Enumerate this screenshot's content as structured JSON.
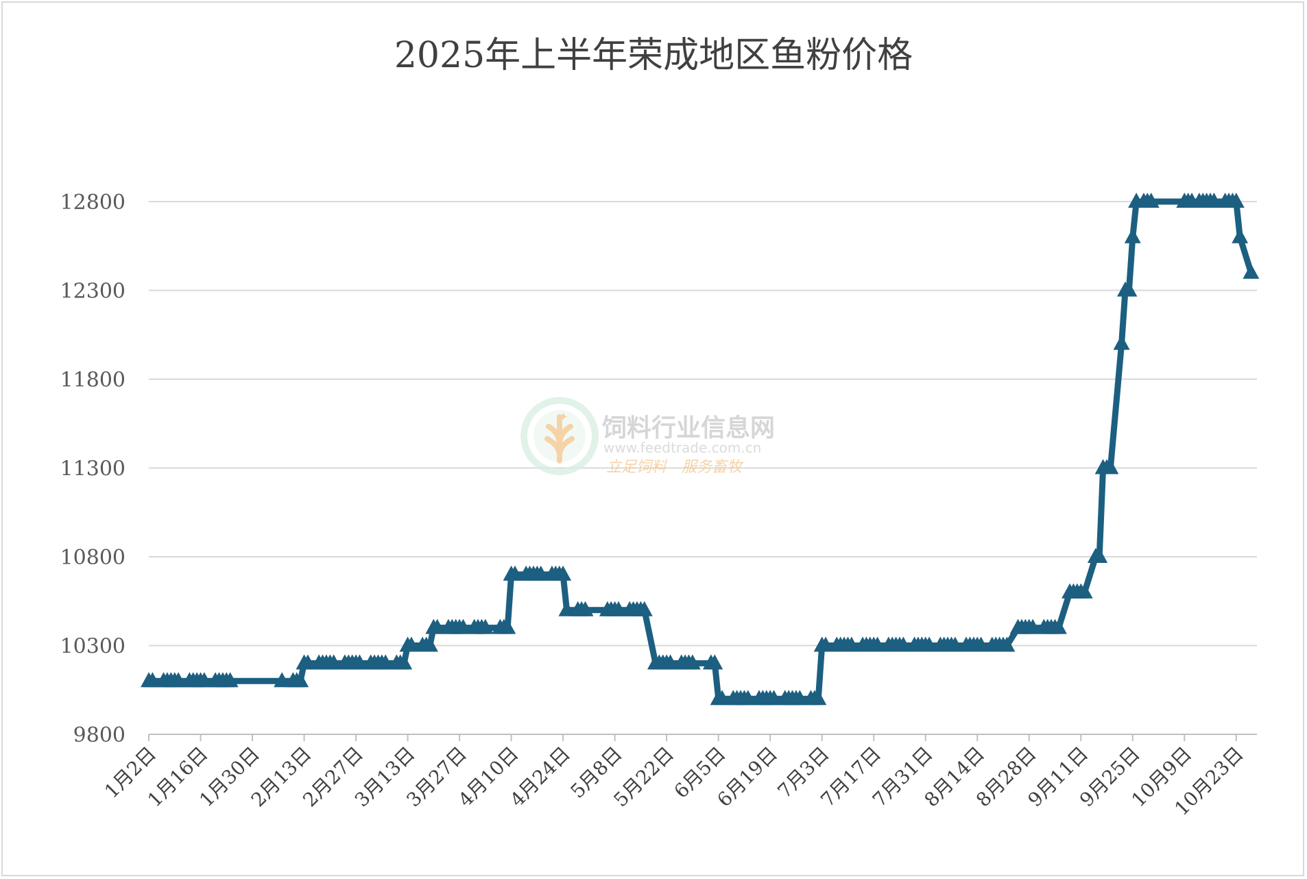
{
  "chart_data": {
    "type": "line",
    "title": "2025年上半年荣成地区鱼粉价格",
    "xlabel": "",
    "ylabel": "",
    "ylim": [
      9800,
      12800
    ],
    "yticks": [
      9800,
      10300,
      10800,
      11300,
      11800,
      12300,
      12800
    ],
    "grid": true,
    "legend": "none",
    "line_color": "#1c5f80",
    "marker": "triangle",
    "xtick_labels": [
      "1月2日",
      "1月16日",
      "1月30日",
      "2月13日",
      "2月27日",
      "3月13日",
      "3月27日",
      "4月10日",
      "4月24日",
      "5月8日",
      "5月22日",
      "6月5日",
      "6月19日",
      "7月3日",
      "7月17日",
      "7月31日",
      "8月14日",
      "8月28日",
      "9月11日",
      "9月25日",
      "10月9日",
      "10月23日"
    ],
    "x_start": "2025-01-02",
    "series": [
      {
        "points": [
          [
            "1月2日",
            10100
          ],
          [
            "1月3日",
            10100
          ],
          [
            "1月6日",
            10100
          ],
          [
            "1月7日",
            10100
          ],
          [
            "1月8日",
            10100
          ],
          [
            "1月9日",
            10100
          ],
          [
            "1月10日",
            10100
          ],
          [
            "1月13日",
            10100
          ],
          [
            "1月14日",
            10100
          ],
          [
            "1月15日",
            10100
          ],
          [
            "1月16日",
            10100
          ],
          [
            "1月17日",
            10100
          ],
          [
            "1月20日",
            10100
          ],
          [
            "1月21日",
            10100
          ],
          [
            "1月22日",
            10100
          ],
          [
            "1月23日",
            10100
          ],
          [
            "1月24日",
            10100
          ],
          [
            "2月7日",
            10100
          ],
          [
            "2月10日",
            10100
          ],
          [
            "2月11日",
            10100
          ],
          [
            "2月12日",
            10100
          ],
          [
            "2月13日",
            10200
          ],
          [
            "2月14日",
            10200
          ],
          [
            "2月17日",
            10200
          ],
          [
            "2月18日",
            10200
          ],
          [
            "2月19日",
            10200
          ],
          [
            "2月20日",
            10200
          ],
          [
            "2月21日",
            10200
          ],
          [
            "2月24日",
            10200
          ],
          [
            "2月25日",
            10200
          ],
          [
            "2月26日",
            10200
          ],
          [
            "2月27日",
            10200
          ],
          [
            "2月28日",
            10200
          ],
          [
            "3月3日",
            10200
          ],
          [
            "3月4日",
            10200
          ],
          [
            "3月5日",
            10200
          ],
          [
            "3月6日",
            10200
          ],
          [
            "3月7日",
            10200
          ],
          [
            "3月10日",
            10200
          ],
          [
            "3月11日",
            10200
          ],
          [
            "3月12日",
            10200
          ],
          [
            "3月13日",
            10300
          ],
          [
            "3月14日",
            10300
          ],
          [
            "3月17日",
            10300
          ],
          [
            "3月18日",
            10300
          ],
          [
            "3月19日",
            10300
          ],
          [
            "3月20日",
            10400
          ],
          [
            "3月21日",
            10400
          ],
          [
            "3月24日",
            10400
          ],
          [
            "3月25日",
            10400
          ],
          [
            "3月26日",
            10400
          ],
          [
            "3月27日",
            10400
          ],
          [
            "3月28日",
            10400
          ],
          [
            "3月31日",
            10400
          ],
          [
            "4月1日",
            10400
          ],
          [
            "4月2日",
            10400
          ],
          [
            "4月3日",
            10400
          ],
          [
            "4月7日",
            10400
          ],
          [
            "4月8日",
            10400
          ],
          [
            "4月9日",
            10400
          ],
          [
            "4月10日",
            10700
          ],
          [
            "4月11日",
            10700
          ],
          [
            "4月14日",
            10700
          ],
          [
            "4月15日",
            10700
          ],
          [
            "4月16日",
            10700
          ],
          [
            "4月17日",
            10700
          ],
          [
            "4月18日",
            10700
          ],
          [
            "4月21日",
            10700
          ],
          [
            "4月22日",
            10700
          ],
          [
            "4月23日",
            10700
          ],
          [
            "4月24日",
            10700
          ],
          [
            "4月25日",
            10500
          ],
          [
            "4月28日",
            10500
          ],
          [
            "4月29日",
            10500
          ],
          [
            "4月30日",
            10500
          ],
          [
            "5月6日",
            10500
          ],
          [
            "5月7日",
            10500
          ],
          [
            "5月8日",
            10500
          ],
          [
            "5月9日",
            10500
          ],
          [
            "5月12日",
            10500
          ],
          [
            "5月13日",
            10500
          ],
          [
            "5月14日",
            10500
          ],
          [
            "5月15日",
            10500
          ],
          [
            "5月16日",
            10500
          ],
          [
            "5月19日",
            10200
          ],
          [
            "5月20日",
            10200
          ],
          [
            "5月21日",
            10200
          ],
          [
            "5月22日",
            10200
          ],
          [
            "5月23日",
            10200
          ],
          [
            "5月26日",
            10200
          ],
          [
            "5月27日",
            10200
          ],
          [
            "5月28日",
            10200
          ],
          [
            "5月29日",
            10200
          ],
          [
            "6月3日",
            10200
          ],
          [
            "6月4日",
            10200
          ],
          [
            "6月5日",
            10000
          ],
          [
            "6月6日",
            10000
          ],
          [
            "6月9日",
            10000
          ],
          [
            "6月10日",
            10000
          ],
          [
            "6月11日",
            10000
          ],
          [
            "6月12日",
            10000
          ],
          [
            "6月13日",
            10000
          ],
          [
            "6月16日",
            10000
          ],
          [
            "6月17日",
            10000
          ],
          [
            "6月18日",
            10000
          ],
          [
            "6月19日",
            10000
          ],
          [
            "6月20日",
            10000
          ],
          [
            "6月23日",
            10000
          ],
          [
            "6月24日",
            10000
          ],
          [
            "6月25日",
            10000
          ],
          [
            "6月26日",
            10000
          ],
          [
            "6月27日",
            10000
          ],
          [
            "6月30日",
            10000
          ],
          [
            "7月1日",
            10000
          ],
          [
            "7月2日",
            10000
          ],
          [
            "7月3日",
            10300
          ],
          [
            "7月4日",
            10300
          ],
          [
            "7月7日",
            10300
          ],
          [
            "7月8日",
            10300
          ],
          [
            "7月9日",
            10300
          ],
          [
            "7月10日",
            10300
          ],
          [
            "7月11日",
            10300
          ],
          [
            "7月14日",
            10300
          ],
          [
            "7月15日",
            10300
          ],
          [
            "7月16日",
            10300
          ],
          [
            "7月17日",
            10300
          ],
          [
            "7月18日",
            10300
          ],
          [
            "7月21日",
            10300
          ],
          [
            "7月22日",
            10300
          ],
          [
            "7月23日",
            10300
          ],
          [
            "7月24日",
            10300
          ],
          [
            "7月25日",
            10300
          ],
          [
            "7月28日",
            10300
          ],
          [
            "7月29日",
            10300
          ],
          [
            "7月30日",
            10300
          ],
          [
            "7月31日",
            10300
          ],
          [
            "8月1日",
            10300
          ],
          [
            "8月4日",
            10300
          ],
          [
            "8月5日",
            10300
          ],
          [
            "8月6日",
            10300
          ],
          [
            "8月7日",
            10300
          ],
          [
            "8月8日",
            10300
          ],
          [
            "8月11日",
            10300
          ],
          [
            "8月12日",
            10300
          ],
          [
            "8月13日",
            10300
          ],
          [
            "8月14日",
            10300
          ],
          [
            "8月15日",
            10300
          ],
          [
            "8月18日",
            10300
          ],
          [
            "8月19日",
            10300
          ],
          [
            "8月20日",
            10300
          ],
          [
            "8月21日",
            10300
          ],
          [
            "8月22日",
            10300
          ],
          [
            "8月25日",
            10400
          ],
          [
            "8月26日",
            10400
          ],
          [
            "8月27日",
            10400
          ],
          [
            "8月28日",
            10400
          ],
          [
            "8月29日",
            10400
          ],
          [
            "9月1日",
            10400
          ],
          [
            "9月2日",
            10400
          ],
          [
            "9月3日",
            10400
          ],
          [
            "9月4日",
            10400
          ],
          [
            "9月5日",
            10400
          ],
          [
            "9月8日",
            10600
          ],
          [
            "9月9日",
            10600
          ],
          [
            "9月10日",
            10600
          ],
          [
            "9月11日",
            10600
          ],
          [
            "9月12日",
            10600
          ],
          [
            "9月15日",
            10800
          ],
          [
            "9月16日",
            10800
          ],
          [
            "9月17日",
            11300
          ],
          [
            "9月18日",
            11300
          ],
          [
            "9月19日",
            11300
          ],
          [
            "9月22日",
            12000
          ],
          [
            "9月23日",
            12300
          ],
          [
            "9月24日",
            12300
          ],
          [
            "9月25日",
            12600
          ],
          [
            "9月26日",
            12800
          ],
          [
            "9月28日",
            12800
          ],
          [
            "9月29日",
            12800
          ],
          [
            "9月30日",
            12800
          ],
          [
            "10月9日",
            12800
          ],
          [
            "10月10日",
            12800
          ],
          [
            "10月11日",
            12800
          ],
          [
            "10月13日",
            12800
          ],
          [
            "10月14日",
            12800
          ],
          [
            "10月15日",
            12800
          ],
          [
            "10月16日",
            12800
          ],
          [
            "10月17日",
            12800
          ],
          [
            "10月20日",
            12800
          ],
          [
            "10月21日",
            12800
          ],
          [
            "10月22日",
            12800
          ],
          [
            "10月23日",
            12800
          ],
          [
            "10月24日",
            12600
          ],
          [
            "10月27日",
            12400
          ]
        ]
      }
    ]
  },
  "watermark": {
    "name": "饲料行业信息网",
    "url": "www.feedtrade.com.cn",
    "slogan": "立足饲料　服务畜牧",
    "colors": {
      "green": "#8fcfb0",
      "orange": "#f2c58a",
      "gray": "#c9c9c9"
    }
  }
}
